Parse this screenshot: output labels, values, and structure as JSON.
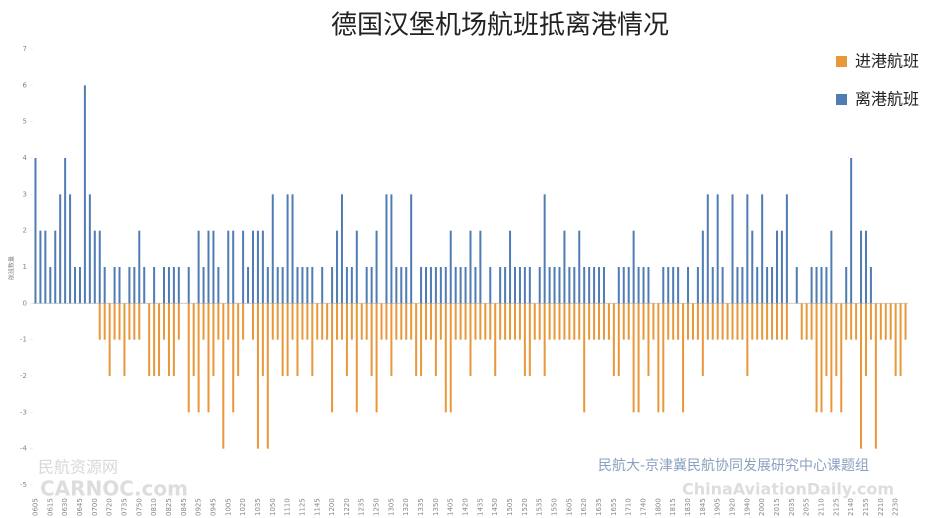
{
  "chart_data": {
    "type": "bar",
    "title": "德国汉堡机场航班抵离港情况",
    "y_label": "航班数量",
    "annotations": [
      "民航大-京津冀民航协同发展研究中心课题组",
      "民航资源网",
      "CARNOC.com",
      "ChinaAviationDaily.com"
    ],
    "categories": [
      "0605",
      null,
      null,
      "0615",
      null,
      null,
      "0630",
      null,
      null,
      "0645",
      null,
      null,
      "0700",
      null,
      null,
      "0720",
      null,
      null,
      "0735",
      null,
      null,
      "0750",
      null,
      null,
      "0810",
      null,
      null,
      "0825",
      null,
      null,
      "0845",
      null,
      null,
      "0925",
      null,
      null,
      "0945",
      null,
      null,
      "1005",
      null,
      null,
      "1020",
      null,
      null,
      "1035",
      null,
      null,
      "1050",
      null,
      null,
      "1110",
      null,
      null,
      "1125",
      null,
      null,
      "1145",
      null,
      null,
      "1200",
      null,
      null,
      "1220",
      null,
      null,
      "1235",
      null,
      null,
      "1250",
      null,
      null,
      "1305",
      null,
      null,
      "1320",
      null,
      null,
      "1335",
      null,
      null,
      "1350",
      null,
      null,
      "1405",
      null,
      null,
      "1420",
      null,
      null,
      "1435",
      null,
      null,
      "1450",
      null,
      null,
      "1505",
      null,
      null,
      "1520",
      null,
      null,
      "1535",
      null,
      null,
      "1550",
      null,
      null,
      "1605",
      null,
      null,
      "1620",
      null,
      null,
      "1635",
      null,
      null,
      "1655",
      null,
      null,
      "1710",
      null,
      null,
      "1740",
      null,
      null,
      "1800",
      null,
      null,
      "1815",
      null,
      null,
      "1830",
      null,
      null,
      "1845",
      null,
      null,
      "1905",
      null,
      null,
      "1920",
      null,
      null,
      "1940",
      null,
      null,
      "2000",
      null,
      null,
      "2015",
      null,
      null,
      "2035",
      null,
      null,
      "2055",
      null,
      null,
      "2110",
      null,
      null,
      "2125",
      null,
      null,
      "2140",
      null,
      null,
      "2155",
      null,
      null,
      "2210",
      null,
      null,
      "2230",
      null,
      null
    ],
    "series": [
      {
        "name": "进港航班",
        "color": "#e8973a",
        "values": [
          0,
          0,
          0,
          0,
          0,
          0,
          0,
          0,
          0,
          0,
          0,
          0,
          0,
          -1,
          -1,
          -2,
          -1,
          -1,
          -2,
          -1,
          -1,
          -1,
          0,
          -2,
          -2,
          -2,
          -1,
          -2,
          -2,
          -1,
          0,
          -3,
          -2,
          -3,
          -1,
          -3,
          -2,
          -1,
          -4,
          -1,
          -3,
          -2,
          -1,
          0,
          -1,
          -4,
          -2,
          -4,
          -1,
          -1,
          -2,
          -2,
          -1,
          -2,
          -1,
          -1,
          -2,
          -1,
          -1,
          -1,
          -3,
          -1,
          -1,
          -2,
          -1,
          -3,
          -1,
          -1,
          -2,
          -3,
          -1,
          -1,
          -2,
          -1,
          -1,
          -1,
          -1,
          -2,
          -2,
          -1,
          -1,
          -2,
          -1,
          -3,
          -3,
          -1,
          -1,
          -1,
          -2,
          -1,
          -1,
          -1,
          -1,
          -2,
          -1,
          -1,
          -1,
          -1,
          -1,
          -2,
          -2,
          -1,
          -1,
          -2,
          -1,
          -1,
          -1,
          -1,
          -1,
          -1,
          -1,
          -3,
          -1,
          -1,
          -1,
          -1,
          -1,
          -2,
          -2,
          -1,
          -1,
          -3,
          -3,
          -1,
          -2,
          -1,
          -3,
          -3,
          -1,
          -1,
          -1,
          -3,
          -1,
          -1,
          -1,
          -2,
          -1,
          -1,
          -1,
          -1,
          -1,
          -1,
          -1,
          -1,
          -2,
          -1,
          -1,
          -1,
          -1,
          -1,
          -1,
          -1,
          -1,
          0,
          0,
          -1,
          -1,
          -1,
          -3,
          -3,
          -2,
          -3,
          -2,
          -3,
          -1,
          -1,
          -1,
          -4,
          -2,
          -1,
          -4,
          -1,
          -1,
          -1,
          -2,
          -2,
          -1
        ]
      },
      {
        "name": "离港航班",
        "color": "#4f7cb3",
        "values": [
          4,
          2,
          2,
          1,
          2,
          3,
          4,
          3,
          1,
          1,
          6,
          3,
          2,
          2,
          1,
          0,
          1,
          1,
          0,
          1,
          1,
          2,
          1,
          0,
          1,
          0,
          1,
          1,
          1,
          1,
          0,
          1,
          0,
          2,
          1,
          2,
          2,
          1,
          0,
          2,
          2,
          0,
          2,
          1,
          2,
          2,
          2,
          1,
          3,
          1,
          1,
          3,
          3,
          1,
          1,
          1,
          1,
          0,
          1,
          0,
          1,
          2,
          3,
          1,
          1,
          2,
          0,
          1,
          1,
          2,
          0,
          3,
          3,
          1,
          1,
          1,
          3,
          0,
          1,
          1,
          1,
          1,
          1,
          1,
          2,
          1,
          1,
          1,
          2,
          1,
          2,
          0,
          1,
          0,
          1,
          1,
          2,
          1,
          1,
          1,
          1,
          0,
          1,
          3,
          1,
          1,
          1,
          2,
          1,
          1,
          2,
          1,
          1,
          1,
          1,
          1,
          0,
          0,
          1,
          1,
          1,
          2,
          1,
          1,
          1,
          0,
          0,
          1,
          1,
          1,
          1,
          0,
          1,
          0,
          1,
          2,
          3,
          1,
          3,
          1,
          0,
          3,
          1,
          1,
          3,
          2,
          1,
          3,
          1,
          1,
          2,
          2,
          3,
          0,
          1,
          0,
          0,
          1,
          1,
          1,
          1,
          2,
          0,
          0,
          1,
          4,
          0,
          2,
          2,
          1,
          0,
          0,
          0,
          0,
          0,
          0,
          0
        ]
      }
    ],
    "ylim": [
      -5,
      7
    ],
    "yticks": [
      -5,
      -4,
      -3,
      -2,
      -1,
      0,
      1,
      2,
      3,
      4,
      5,
      6,
      7
    ],
    "grid": false,
    "legend": "top-right"
  }
}
